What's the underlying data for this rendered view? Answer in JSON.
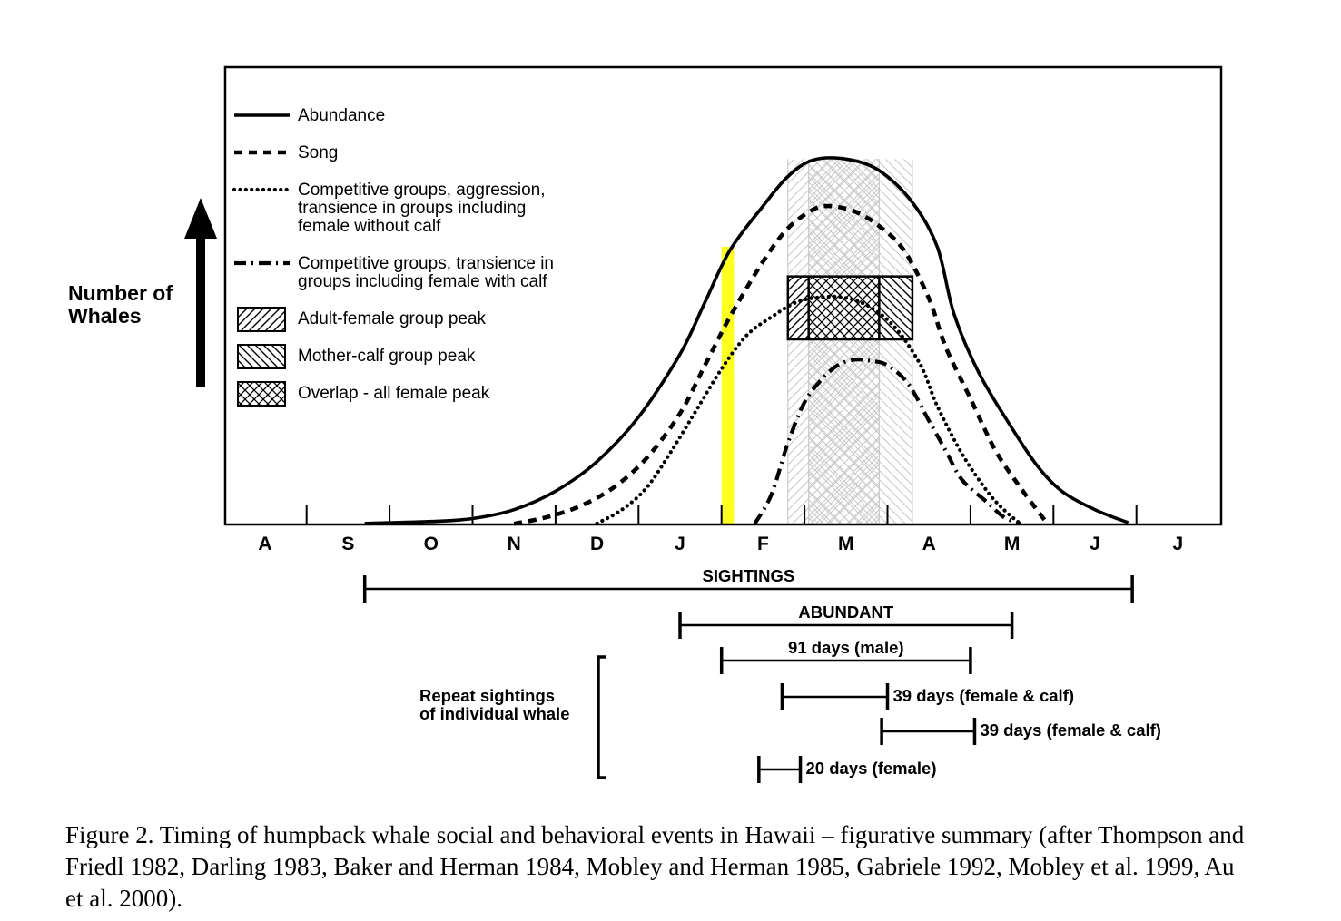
{
  "chart_data": {
    "type": "line",
    "ylabel_lines": [
      "Number of",
      "Whales"
    ],
    "months": [
      "A",
      "S",
      "O",
      "N",
      "D",
      "J",
      "F",
      "M",
      "A",
      "M",
      "J",
      "J"
    ],
    "x_units": "month index (0 = August, 1 = September, ... 11 = July; tick marks at month boundaries)",
    "y_units": "relative number of whales (0-100, figurative)",
    "ylim": [
      0,
      100
    ],
    "series": [
      {
        "name": "Abundance",
        "style": "solid",
        "points": [
          [
            1.2,
            0.3
          ],
          [
            2.0,
            0.8
          ],
          [
            2.5,
            1.6
          ],
          [
            3.0,
            4
          ],
          [
            3.5,
            9
          ],
          [
            4.0,
            17
          ],
          [
            4.5,
            29
          ],
          [
            5.0,
            46
          ],
          [
            5.3,
            60
          ],
          [
            5.6,
            74
          ],
          [
            6.0,
            86
          ],
          [
            6.3,
            94
          ],
          [
            6.6,
            98.4
          ],
          [
            7.0,
            98.7
          ],
          [
            7.4,
            95.6
          ],
          [
            7.8,
            87
          ],
          [
            8.1,
            75
          ],
          [
            8.3,
            57
          ],
          [
            8.6,
            41
          ],
          [
            9.0,
            26
          ],
          [
            9.3,
            16
          ],
          [
            9.6,
            9
          ],
          [
            10.0,
            4
          ],
          [
            10.4,
            0.5
          ]
        ]
      },
      {
        "name": "Song",
        "style": "dashed",
        "points": [
          [
            3.0,
            0.2
          ],
          [
            3.4,
            2
          ],
          [
            3.8,
            5
          ],
          [
            4.2,
            10
          ],
          [
            4.6,
            18
          ],
          [
            5.0,
            30
          ],
          [
            5.3,
            43
          ],
          [
            5.6,
            56
          ],
          [
            6.0,
            71
          ],
          [
            6.3,
            80
          ],
          [
            6.6,
            85
          ],
          [
            6.8,
            86
          ],
          [
            7.1,
            84.6
          ],
          [
            7.4,
            80.6
          ],
          [
            7.7,
            74
          ],
          [
            8.0,
            61
          ],
          [
            8.2,
            48
          ],
          [
            8.5,
            34
          ],
          [
            8.8,
            20
          ],
          [
            9.1,
            10
          ],
          [
            9.4,
            1
          ]
        ]
      },
      {
        "name": "Competitive groups, aggression, transience in groups including female without calf",
        "style": "dotted",
        "points": [
          [
            4.0,
            0.3
          ],
          [
            4.3,
            4
          ],
          [
            4.6,
            10
          ],
          [
            4.9,
            20
          ],
          [
            5.2,
            31
          ],
          [
            5.5,
            42
          ],
          [
            5.8,
            51
          ],
          [
            6.1,
            56
          ],
          [
            6.4,
            60
          ],
          [
            6.7,
            61.4
          ],
          [
            7.0,
            61.2
          ],
          [
            7.3,
            58.6
          ],
          [
            7.6,
            53
          ],
          [
            7.9,
            43
          ],
          [
            8.1,
            32
          ],
          [
            8.4,
            19
          ],
          [
            8.7,
            9
          ],
          [
            8.9,
            4
          ],
          [
            9.1,
            0.2
          ]
        ]
      },
      {
        "name": "Competitive groups, transience in groups including female with calf",
        "style": "dash-dot",
        "points": [
          [
            5.9,
            0.2
          ],
          [
            6.1,
            8
          ],
          [
            6.3,
            22
          ],
          [
            6.5,
            33
          ],
          [
            6.7,
            39
          ],
          [
            6.9,
            43
          ],
          [
            7.1,
            44.5
          ],
          [
            7.3,
            44.2
          ],
          [
            7.5,
            43
          ],
          [
            7.75,
            38
          ],
          [
            8.0,
            28
          ],
          [
            8.2,
            20
          ],
          [
            8.4,
            12
          ],
          [
            8.7,
            6
          ],
          [
            8.9,
            2
          ],
          [
            9.1,
            0.2
          ]
        ]
      }
    ],
    "period_markers": [
      {
        "name": "Adult-female group peak",
        "pattern": "diagonal-right",
        "start_month": 6.3,
        "end_month": 7.4
      },
      {
        "name": "Overlap - all female peak",
        "pattern": "crosshatch",
        "start_month": 6.55,
        "end_month": 7.4
      },
      {
        "name": "Mother-calf group peak",
        "pattern": "diagonal-left",
        "start_month": 6.55,
        "end_month": 7.8
      },
      {
        "name": "highlight",
        "color": "#ffff1f",
        "start_month": 5.5,
        "end_month": 5.65
      }
    ],
    "peak_box": {
      "start_month": 6.3,
      "end_month": 7.8,
      "adult_end_month": 6.55,
      "overlap_end_month": 7.4,
      "y_low": 50,
      "y_high": 67
    },
    "legend": [
      {
        "lines": [
          "Abundance"
        ],
        "symbol": "solid"
      },
      {
        "lines": [
          "Song"
        ],
        "symbol": "dashed"
      },
      {
        "lines": [
          "Competitive groups, aggression,",
          "transience in groups including",
          "female without calf"
        ],
        "symbol": "dotted"
      },
      {
        "lines": [
          "Competitive groups, transience in",
          "groups including female with calf"
        ],
        "symbol": "dash-dot"
      },
      {
        "lines": [
          "Adult-female group peak"
        ],
        "symbol": "hatch-right"
      },
      {
        "lines": [
          "Mother-calf group peak"
        ],
        "symbol": "hatch-left"
      },
      {
        "lines": [
          "Overlap - all female peak"
        ],
        "symbol": "crosshatch"
      }
    ],
    "timeline": [
      {
        "label": "SIGHTINGS",
        "start_month": 1.2,
        "end_month": 10.45,
        "label_position": "above"
      },
      {
        "label": "ABUNDANT",
        "start_month": 5.0,
        "end_month": 9.0,
        "label_position": "above"
      },
      {
        "label": "91 days (male)",
        "start_month": 5.5,
        "end_month": 8.5,
        "label_position": "above"
      },
      {
        "label": "39 days (female & calf)",
        "start_month": 6.23,
        "end_month": 7.5,
        "label_position": "right"
      },
      {
        "label": "39 days (female & calf)",
        "start_month": 7.43,
        "end_month": 8.55,
        "label_position": "right"
      },
      {
        "label": "20 days (female)",
        "start_month": 5.95,
        "end_month": 6.45,
        "label_position": "right"
      }
    ],
    "bracket_label": [
      "Repeat sightings",
      "of individual whale"
    ]
  },
  "caption": "Figure 2. Timing of humpback whale social and behavioral events in Hawaii – figurative summary (after Thompson and Friedl 1982, Darling 1983, Baker and Herman 1984, Mobley and Herman 1985, Gabriele 1992, Mobley et al. 1999, Au et al. 2000)."
}
